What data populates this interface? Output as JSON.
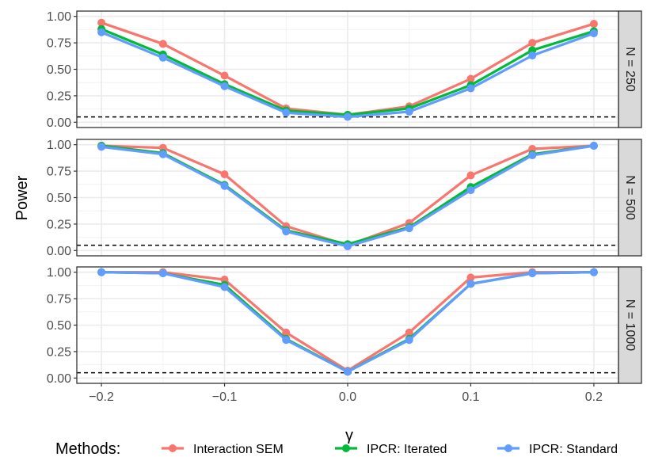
{
  "chart_data": {
    "type": "line",
    "xlabel": "γ",
    "ylabel": "Power",
    "x": [
      -0.2,
      -0.15,
      -0.1,
      -0.05,
      0.0,
      0.05,
      0.1,
      0.15,
      0.2
    ],
    "xticks": [
      -0.2,
      -0.1,
      0.0,
      0.1,
      0.2
    ],
    "xtick_labels": [
      "−0.2",
      "−0.1",
      "0.0",
      "0.1",
      "0.2"
    ],
    "yticks": [
      0,
      0.25,
      0.5,
      0.75,
      1.0
    ],
    "ytick_labels": [
      "0.00",
      "0.25",
      "0.50",
      "0.75",
      "1.00"
    ],
    "xlim": [
      -0.2,
      0.2
    ],
    "ylim": [
      0,
      1
    ],
    "reference_line_y": 0.05,
    "grid": true,
    "legend": {
      "title": "Methods:",
      "position": "bottom",
      "entries": [
        "Interaction SEM",
        "IPCR: Iterated",
        "IPCR: Standard"
      ]
    },
    "colors": {
      "Interaction SEM": "#F8766D",
      "IPCR: Iterated": "#00BA38",
      "IPCR: Standard": "#619CFF"
    },
    "panels": [
      {
        "strip": "N = 250",
        "series": [
          {
            "name": "Interaction SEM",
            "values": [
              0.94,
              0.74,
              0.44,
              0.13,
              0.07,
              0.15,
              0.41,
              0.75,
              0.93
            ]
          },
          {
            "name": "IPCR: Iterated",
            "values": [
              0.88,
              0.64,
              0.36,
              0.11,
              0.07,
              0.13,
              0.35,
              0.68,
              0.86
            ]
          },
          {
            "name": "IPCR: Standard",
            "values": [
              0.85,
              0.61,
              0.34,
              0.09,
              0.05,
              0.1,
              0.32,
              0.63,
              0.84
            ]
          }
        ]
      },
      {
        "strip": "N = 500",
        "series": [
          {
            "name": "Interaction SEM",
            "values": [
              0.99,
              0.97,
              0.72,
              0.23,
              0.05,
              0.26,
              0.71,
              0.96,
              0.99
            ]
          },
          {
            "name": "IPCR: Iterated",
            "values": [
              0.99,
              0.92,
              0.62,
              0.19,
              0.06,
              0.22,
              0.6,
              0.91,
              0.99
            ]
          },
          {
            "name": "IPCR: Standard",
            "values": [
              0.98,
              0.91,
              0.61,
              0.18,
              0.04,
              0.21,
              0.57,
              0.9,
              0.99
            ]
          }
        ]
      },
      {
        "strip": "N = 1000",
        "series": [
          {
            "name": "Interaction SEM",
            "values": [
              1.0,
              1.0,
              0.93,
              0.43,
              0.07,
              0.43,
              0.95,
              1.0,
              1.0
            ]
          },
          {
            "name": "IPCR: Iterated",
            "values": [
              1.0,
              0.99,
              0.88,
              0.37,
              0.06,
              0.37,
              0.89,
              0.99,
              1.0
            ]
          },
          {
            "name": "IPCR: Standard",
            "values": [
              1.0,
              0.99,
              0.86,
              0.36,
              0.06,
              0.36,
              0.89,
              0.99,
              1.0
            ]
          }
        ]
      }
    ]
  }
}
